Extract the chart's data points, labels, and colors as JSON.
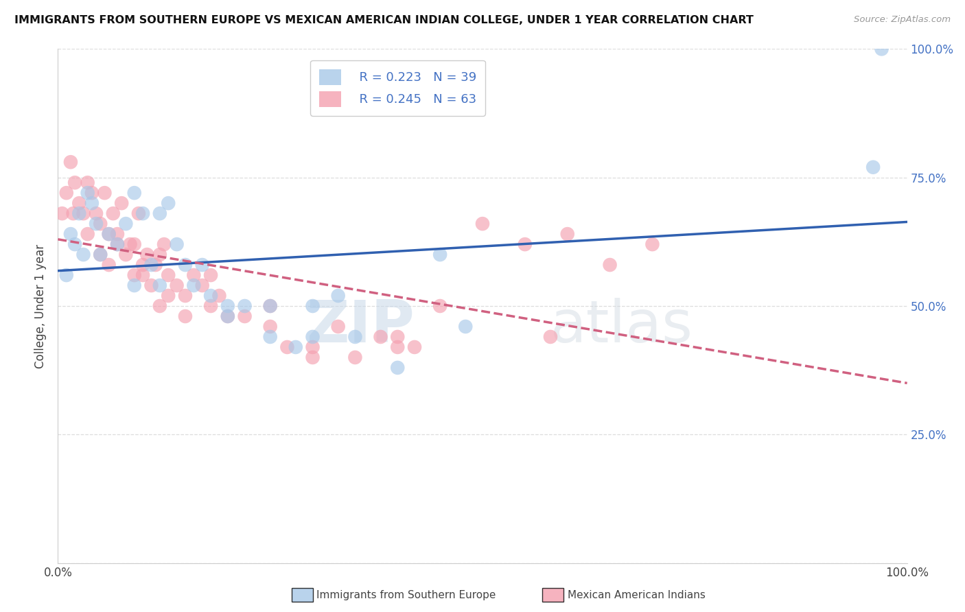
{
  "title": "IMMIGRANTS FROM SOUTHERN EUROPE VS MEXICAN AMERICAN INDIAN COLLEGE, UNDER 1 YEAR CORRELATION CHART",
  "source": "Source: ZipAtlas.com",
  "ylabel": "College, Under 1 year",
  "right_axis_labels": [
    "100.0%",
    "75.0%",
    "50.0%",
    "25.0%",
    "0.0%"
  ],
  "legend_labels": [
    "Immigrants from Southern Europe",
    "Mexican American Indians"
  ],
  "R_blue": 0.223,
  "N_blue": 39,
  "R_pink": 0.245,
  "N_pink": 63,
  "blue_color": "#a8c8e8",
  "pink_color": "#f4a0b0",
  "blue_line_color": "#3060b0",
  "pink_line_color": "#d06080",
  "watermark_zip": "ZIP",
  "watermark_atlas": "atlas",
  "blue_points_x": [
    1.0,
    1.5,
    2.0,
    2.5,
    3.0,
    3.5,
    4.0,
    4.5,
    5.0,
    6.0,
    7.0,
    8.0,
    9.0,
    10.0,
    11.0,
    12.0,
    13.0,
    14.0,
    15.0,
    16.0,
    17.0,
    18.0,
    20.0,
    22.0,
    25.0,
    28.0,
    30.0,
    33.0,
    40.0,
    45.0,
    48.0,
    20.0,
    35.0,
    9.0,
    12.0,
    25.0,
    30.0,
    96.0,
    97.0
  ],
  "blue_points_y": [
    0.56,
    0.64,
    0.62,
    0.68,
    0.6,
    0.72,
    0.7,
    0.66,
    0.6,
    0.64,
    0.62,
    0.66,
    0.72,
    0.68,
    0.58,
    0.54,
    0.7,
    0.62,
    0.58,
    0.54,
    0.58,
    0.52,
    0.5,
    0.5,
    0.44,
    0.42,
    0.5,
    0.52,
    0.38,
    0.6,
    0.46,
    0.48,
    0.44,
    0.54,
    0.68,
    0.5,
    0.44,
    0.77,
    1.0
  ],
  "pink_points_x": [
    0.5,
    1.0,
    1.5,
    1.8,
    2.0,
    2.5,
    3.0,
    3.5,
    4.0,
    4.5,
    5.0,
    5.5,
    6.0,
    6.5,
    7.0,
    7.5,
    8.0,
    8.5,
    9.0,
    9.5,
    10.0,
    10.5,
    11.0,
    11.5,
    12.0,
    12.5,
    13.0,
    14.0,
    15.0,
    16.0,
    17.0,
    18.0,
    19.0,
    20.0,
    22.0,
    25.0,
    27.0,
    30.0,
    33.0,
    35.0,
    38.0,
    40.0,
    42.0,
    45.0,
    50.0,
    55.0,
    58.0,
    60.0,
    65.0,
    70.0,
    12.0,
    15.0,
    18.0,
    6.0,
    9.0,
    3.5,
    5.0,
    7.0,
    10.0,
    13.0,
    25.0,
    30.0,
    40.0
  ],
  "pink_points_y": [
    0.68,
    0.72,
    0.78,
    0.68,
    0.74,
    0.7,
    0.68,
    0.74,
    0.72,
    0.68,
    0.66,
    0.72,
    0.64,
    0.68,
    0.64,
    0.7,
    0.6,
    0.62,
    0.62,
    0.68,
    0.56,
    0.6,
    0.54,
    0.58,
    0.6,
    0.62,
    0.56,
    0.54,
    0.52,
    0.56,
    0.54,
    0.56,
    0.52,
    0.48,
    0.48,
    0.5,
    0.42,
    0.42,
    0.46,
    0.4,
    0.44,
    0.44,
    0.42,
    0.5,
    0.66,
    0.62,
    0.44,
    0.64,
    0.58,
    0.62,
    0.5,
    0.48,
    0.5,
    0.58,
    0.56,
    0.64,
    0.6,
    0.62,
    0.58,
    0.52,
    0.46,
    0.4,
    0.42
  ]
}
